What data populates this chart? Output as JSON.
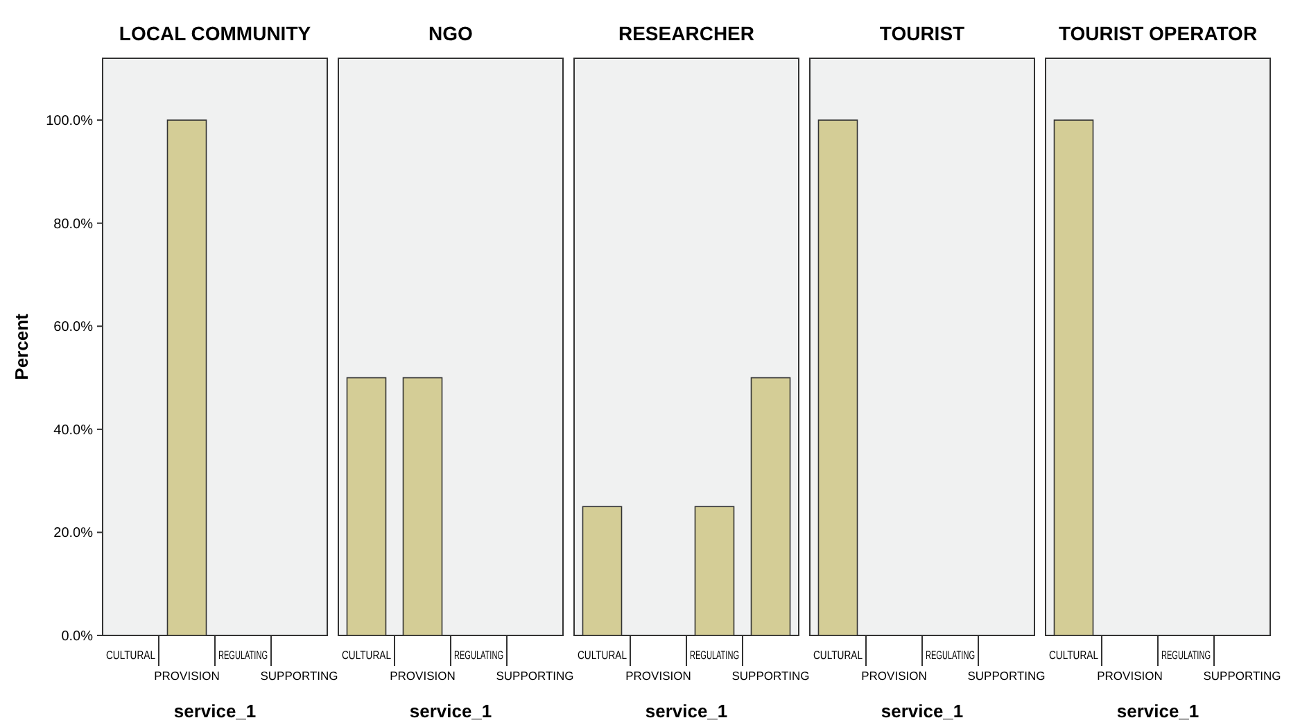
{
  "chart_data": [
    {
      "type": "bar",
      "title": "LOCAL COMMUNITY",
      "xlabel": "service_1",
      "ylabel": "Percent",
      "categories": [
        "CULTURAL",
        "PROVISION",
        "REGULATING",
        "SUPPORTING"
      ],
      "values": [
        0,
        100,
        0,
        0
      ],
      "color": "#d4cd96",
      "ylim": [
        0,
        112
      ],
      "yticks": [
        {
          "value": 0,
          "label": "0.0%"
        },
        {
          "value": 20,
          "label": "20.0%"
        },
        {
          "value": 40,
          "label": "40.0%"
        },
        {
          "value": 60,
          "label": "60.0%"
        },
        {
          "value": 80,
          "label": "80.0%"
        },
        {
          "value": 100,
          "label": "100.0%"
        }
      ]
    },
    {
      "type": "bar",
      "title": "NGO",
      "xlabel": "service_1",
      "categories": [
        "CULTURAL",
        "PROVISION",
        "REGULATING",
        "SUPPORTING"
      ],
      "values": [
        50,
        50,
        0,
        0
      ],
      "color": "#d4cd96",
      "ylim": [
        0,
        112
      ],
      "tick_labels": "x"
    },
    {
      "type": "bar",
      "title": "RESEARCHER",
      "xlabel": "service_1",
      "categories": [
        "CULTURAL",
        "PROVISION",
        "REGULATING",
        "SUPPORTING"
      ],
      "values": [
        25,
        0,
        25,
        50
      ],
      "color": "#d4cd96",
      "ylim": [
        0,
        112
      ],
      "tick_labels": "x"
    },
    {
      "type": "bar",
      "title": "TOURIST",
      "xlabel": "service_1",
      "categories": [
        "CULTURAL",
        "PROVISION",
        "REGULATING",
        "SUPPORTING"
      ],
      "values": [
        100,
        0,
        0,
        0
      ],
      "color": "#d4cd96",
      "ylim": [
        0,
        112
      ],
      "tick_labels": "x"
    },
    {
      "type": "bar",
      "title": "TOURIST OPERATOR",
      "xlabel": "service_1",
      "categories": [
        "CULTURAL",
        "PROVISION",
        "REGULATING",
        "SUPPORTING"
      ],
      "values": [
        100,
        0,
        0,
        0
      ],
      "color": "#d4cd96",
      "ylim": [
        0,
        112
      ],
      "tick_labels": "x"
    }
  ]
}
